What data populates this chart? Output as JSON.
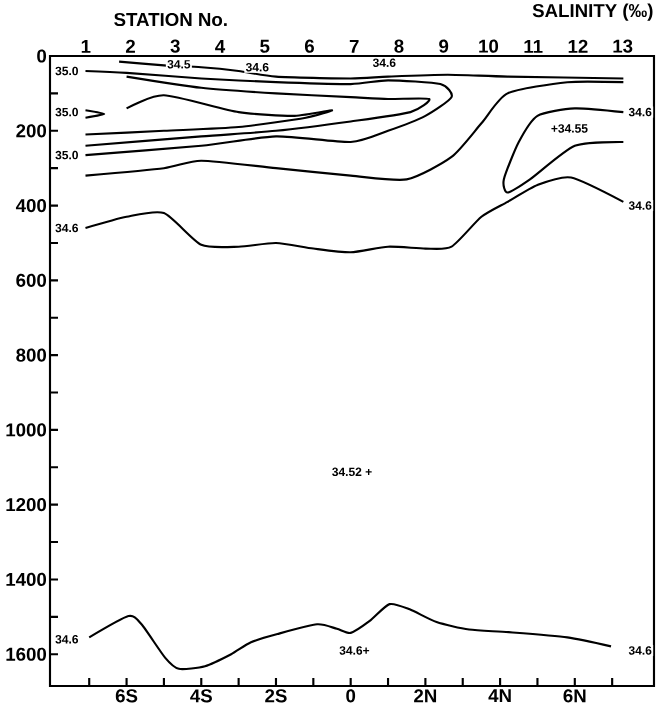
{
  "chart_data": {
    "type": "line",
    "title": "SALINITY (‰)",
    "x2label": "STATION No.",
    "xlim": [
      -8.05,
      8.12
    ],
    "ylim": [
      1685,
      0
    ],
    "xticks": [
      {
        "value": -7,
        "label": null
      },
      {
        "value": -6,
        "label": "6S"
      },
      {
        "value": -5,
        "label": null
      },
      {
        "value": -4,
        "label": "4S"
      },
      {
        "value": -3,
        "label": null
      },
      {
        "value": -2,
        "label": "2S"
      },
      {
        "value": -1,
        "label": null
      },
      {
        "value": 0,
        "label": "0"
      },
      {
        "value": 1,
        "label": null
      },
      {
        "value": 2,
        "label": "2N"
      },
      {
        "value": 3,
        "label": null
      },
      {
        "value": 4,
        "label": "4N"
      },
      {
        "value": 5,
        "label": null
      },
      {
        "value": 6,
        "label": "6N"
      },
      {
        "value": 7,
        "label": null
      }
    ],
    "yticks": [
      0,
      {
        "value": 100,
        "label": null
      },
      200,
      {
        "value": 300,
        "label": null
      },
      400,
      {
        "value": 500,
        "label": null
      },
      600,
      {
        "value": 700,
        "label": null
      },
      800,
      {
        "value": 900,
        "label": null
      },
      1000,
      {
        "value": 1100,
        "label": null
      },
      1200,
      {
        "value": 1300,
        "label": null
      },
      1400,
      {
        "value": 1500,
        "label": null
      },
      1600
    ],
    "x2lim": [
      0.2,
      13.7
    ],
    "x2ticks": [
      1,
      2,
      3,
      4,
      5,
      6,
      7,
      8,
      9,
      10,
      11,
      12,
      13
    ],
    "series": [
      {
        "color": "#000000",
        "x": [
          -7.1,
          -6,
          -5,
          -4,
          -3,
          -2,
          -1,
          0,
          1,
          2,
          2.7,
          3.5,
          4.2,
          5,
          5.9,
          7.3
        ],
        "values": [
          460,
          430,
          420,
          505,
          510,
          500,
          515,
          525,
          510,
          515,
          510,
          430,
          390,
          345,
          325,
          390
        ]
      },
      {
        "color": "#000000",
        "x": [
          7.3,
          6,
          5,
          4.5,
          4.1,
          4.2,
          4.8,
          6,
          7.3
        ],
        "values": [
          150,
          140,
          160,
          230,
          330,
          365,
          330,
          240,
          230
        ]
      },
      {
        "color": "#000000",
        "x": [
          -7.1,
          -5,
          -4,
          -2,
          0,
          1.5,
          2.7,
          3.5,
          4.2,
          5.8,
          7.3
        ],
        "values": [
          320,
          300,
          280,
          300,
          320,
          330,
          270,
          180,
          100,
          70,
          70
        ]
      },
      {
        "color": "#000000",
        "x": [
          -7.1,
          -4,
          -2,
          0,
          1,
          2,
          2.7,
          2.4,
          1,
          0,
          -2,
          -4,
          -6,
          -7.1
        ],
        "values": [
          265,
          240,
          215,
          230,
          200,
          160,
          110,
          75,
          65,
          75,
          70,
          60,
          45,
          40
        ]
      },
      {
        "color": "#000000",
        "x": [
          -7.1,
          -4,
          -2,
          0,
          1.6,
          2.1,
          1,
          0,
          -2,
          -4,
          -6
        ],
        "values": [
          240,
          215,
          200,
          175,
          150,
          115,
          115,
          110,
          100,
          85,
          55
        ]
      },
      {
        "color": "#000000",
        "x": [
          -7.1,
          -5,
          -3,
          -1.2,
          -0.5,
          -1.5,
          -3,
          -5,
          -6
        ],
        "values": [
          210,
          200,
          190,
          165,
          145,
          160,
          150,
          105,
          140
        ]
      },
      {
        "color": "#000000",
        "x": [
          -7.1,
          -6.6,
          -7.1
        ],
        "values": [
          145,
          155,
          165
        ]
      },
      {
        "color": "#000000",
        "x": [
          -6.2,
          -5,
          -4,
          -3,
          -2,
          0,
          1,
          2.6,
          4.2,
          7.3
        ],
        "values": [
          15,
          25,
          30,
          40,
          55,
          60,
          55,
          50,
          55,
          60
        ]
      },
      {
        "color": "#000000",
        "x": [
          -7.0,
          -5.95,
          -5.6,
          -4.97,
          -4.6,
          -3.9,
          -3.2,
          -2.67,
          -1.96,
          -0.9,
          -0.37,
          0,
          0.51,
          1.04,
          1.58,
          2.3,
          3.17,
          4.23,
          5.8,
          6.97
        ],
        "values": [
          1555,
          1498,
          1520,
          1609,
          1639,
          1632,
          1600,
          1568,
          1546,
          1520,
          1532,
          1543,
          1511,
          1466,
          1480,
          1514,
          1534,
          1541,
          1555,
          1579
        ]
      }
    ],
    "annotations": [
      {
        "text": "35.0",
        "x": -7.6,
        "y": 40
      },
      {
        "text": "35.0",
        "x": -7.6,
        "y": 150
      },
      {
        "text": "35.0",
        "x": -7.6,
        "y": 265
      },
      {
        "text": "34.6",
        "x": -7.6,
        "y": 460
      },
      {
        "text": "34.5",
        "x": -4.6,
        "y": 22
      },
      {
        "text": "34.6",
        "x": -2.5,
        "y": 30
      },
      {
        "text": "34.6",
        "x": 0.9,
        "y": 18
      },
      {
        "text": "34.6",
        "x": 7.75,
        "y": 150
      },
      "+34.55",
      {
        "text": "34.6",
        "x": 7.75,
        "y": 400
      },
      "34.52 +",
      {
        "text": "34.6",
        "x": -7.6,
        "y": 1560
      },
      {
        "text": "34.6+",
        "x": 0.1,
        "y": 1590
      },
      {
        "text": "34.6",
        "x": 7.75,
        "y": 1590
      }
    ]
  }
}
